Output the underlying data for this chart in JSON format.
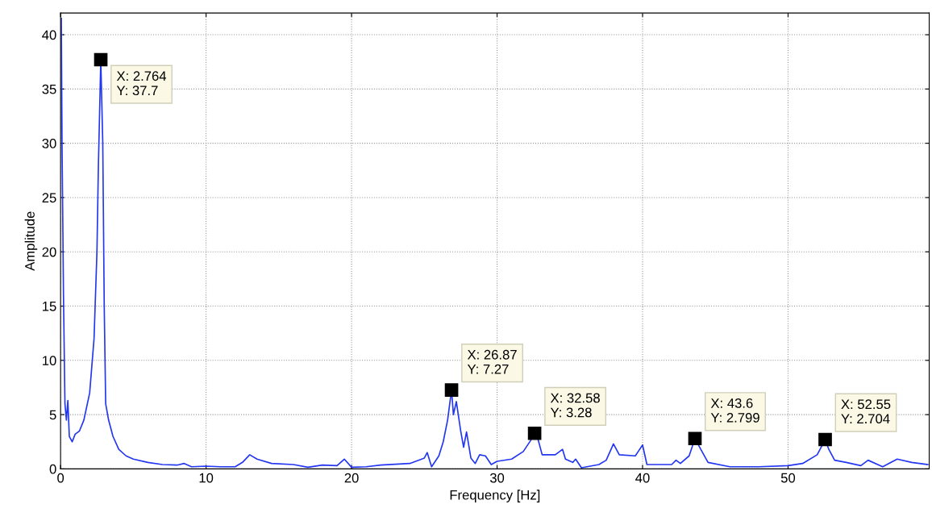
{
  "chart_data": {
    "type": "line",
    "xlabel": "Frequency [Hz]",
    "ylabel": "Amplitude",
    "xlim": [
      0,
      59.7
    ],
    "ylim": [
      0,
      42
    ],
    "xticks": [
      0,
      10,
      20,
      30,
      40,
      50
    ],
    "yticks": [
      0,
      5,
      10,
      15,
      20,
      25,
      30,
      35,
      40
    ],
    "grid": true,
    "line_style": "solid",
    "marker": "none",
    "series": [
      {
        "color": "#2336f0",
        "x": [
          0.05,
          0.1,
          0.2,
          0.3,
          0.4,
          0.5,
          0.6,
          0.8,
          1.0,
          1.3,
          1.6,
          2.0,
          2.3,
          2.5,
          2.6,
          2.764,
          2.9,
          3.0,
          3.1,
          3.3,
          3.6,
          4,
          4.5,
          5,
          6,
          7,
          8,
          8.5,
          9,
          10,
          11,
          12,
          12.5,
          13,
          13.5,
          14.5,
          16,
          17,
          18,
          19,
          19.5,
          20,
          21,
          22,
          24,
          25,
          25.2,
          25.5,
          26,
          26.3,
          26.6,
          26.87,
          27.0,
          27.2,
          27.5,
          27.7,
          27.9,
          28.2,
          28.5,
          28.8,
          29.2,
          29.6,
          30,
          31,
          31.8,
          32.3,
          32.58,
          32.8,
          33.1,
          34,
          34.5,
          34.7,
          35.2,
          35.4,
          35.8,
          37,
          37.5,
          38.0,
          38.4,
          39.5,
          39.7,
          40.0,
          40.3,
          41,
          42,
          42.3,
          42.6,
          43.2,
          43.6,
          44.0,
          44.5,
          46,
          48,
          50,
          51,
          52,
          52.55,
          52.8,
          53.2,
          54,
          55,
          55.5,
          56.5,
          57.5,
          58.5,
          59.6
        ],
        "values": [
          41.5,
          30,
          16,
          6,
          4.5,
          6.3,
          3,
          2.5,
          3.2,
          3.5,
          4.5,
          7,
          12,
          20,
          28,
          37.7,
          30,
          15,
          6,
          4.5,
          3.0,
          1.8,
          1.2,
          0.9,
          0.6,
          0.4,
          0.35,
          0.5,
          0.2,
          0.25,
          0.2,
          0.2,
          0.6,
          1.3,
          0.9,
          0.5,
          0.4,
          0.15,
          0.35,
          0.3,
          0.9,
          0.15,
          0.2,
          0.35,
          0.5,
          1.0,
          1.5,
          0.2,
          1.2,
          2.5,
          4.5,
          7.27,
          5.0,
          6.2,
          3.5,
          2.0,
          3.4,
          1.0,
          0.5,
          1.3,
          1.2,
          0.4,
          0.7,
          0.9,
          1.6,
          2.6,
          3.28,
          2.8,
          1.3,
          1.3,
          1.8,
          0.9,
          0.6,
          0.9,
          0.1,
          0.4,
          0.8,
          2.3,
          1.3,
          1.2,
          1.6,
          2.2,
          0.4,
          0.4,
          0.4,
          0.8,
          0.5,
          1.2,
          2.799,
          1.8,
          0.6,
          0.2,
          0.2,
          0.3,
          0.5,
          1.3,
          2.704,
          1.8,
          0.8,
          0.6,
          0.3,
          0.8,
          0.2,
          0.9,
          0.6,
          0.4
        ]
      }
    ],
    "annotations": [
      {
        "text": "X: 2.764\nY: 37.7",
        "x": 2.764,
        "y": 37.7
      },
      {
        "text": "X: 26.87\nY: 7.27",
        "x": 26.87,
        "y": 7.27
      },
      {
        "text": "X: 32.58\nY: 3.28",
        "x": 32.58,
        "y": 3.28
      },
      {
        "text": "X: 43.6\nY: 2.799",
        "x": 43.6,
        "y": 2.799
      },
      {
        "text": "X: 52.55\nY: 2.704",
        "x": 52.55,
        "y": 2.704
      }
    ]
  }
}
